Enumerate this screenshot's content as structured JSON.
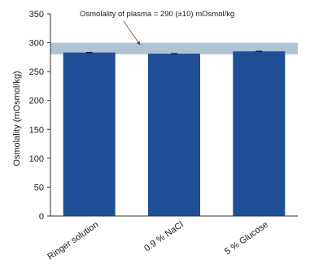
{
  "chart_data": {
    "type": "bar",
    "title": "",
    "xlabel": "",
    "ylabel": "Osmolality (mOsmol/kg)",
    "ylim": [
      0,
      350
    ],
    "yticks": [
      0,
      50,
      100,
      150,
      200,
      250,
      300,
      350
    ],
    "categories": [
      "Ringer solution",
      "0.9 % NaCl",
      "5 % Glucose"
    ],
    "values": [
      283,
      281,
      285
    ],
    "bar_color": "#1f4e96",
    "band": {
      "low": 280,
      "high": 300,
      "color": "#aec4d4",
      "annotation": "Osmolality of plasma = 290 (±10) mOsmol/kg"
    },
    "grid": false,
    "legend": "none"
  }
}
